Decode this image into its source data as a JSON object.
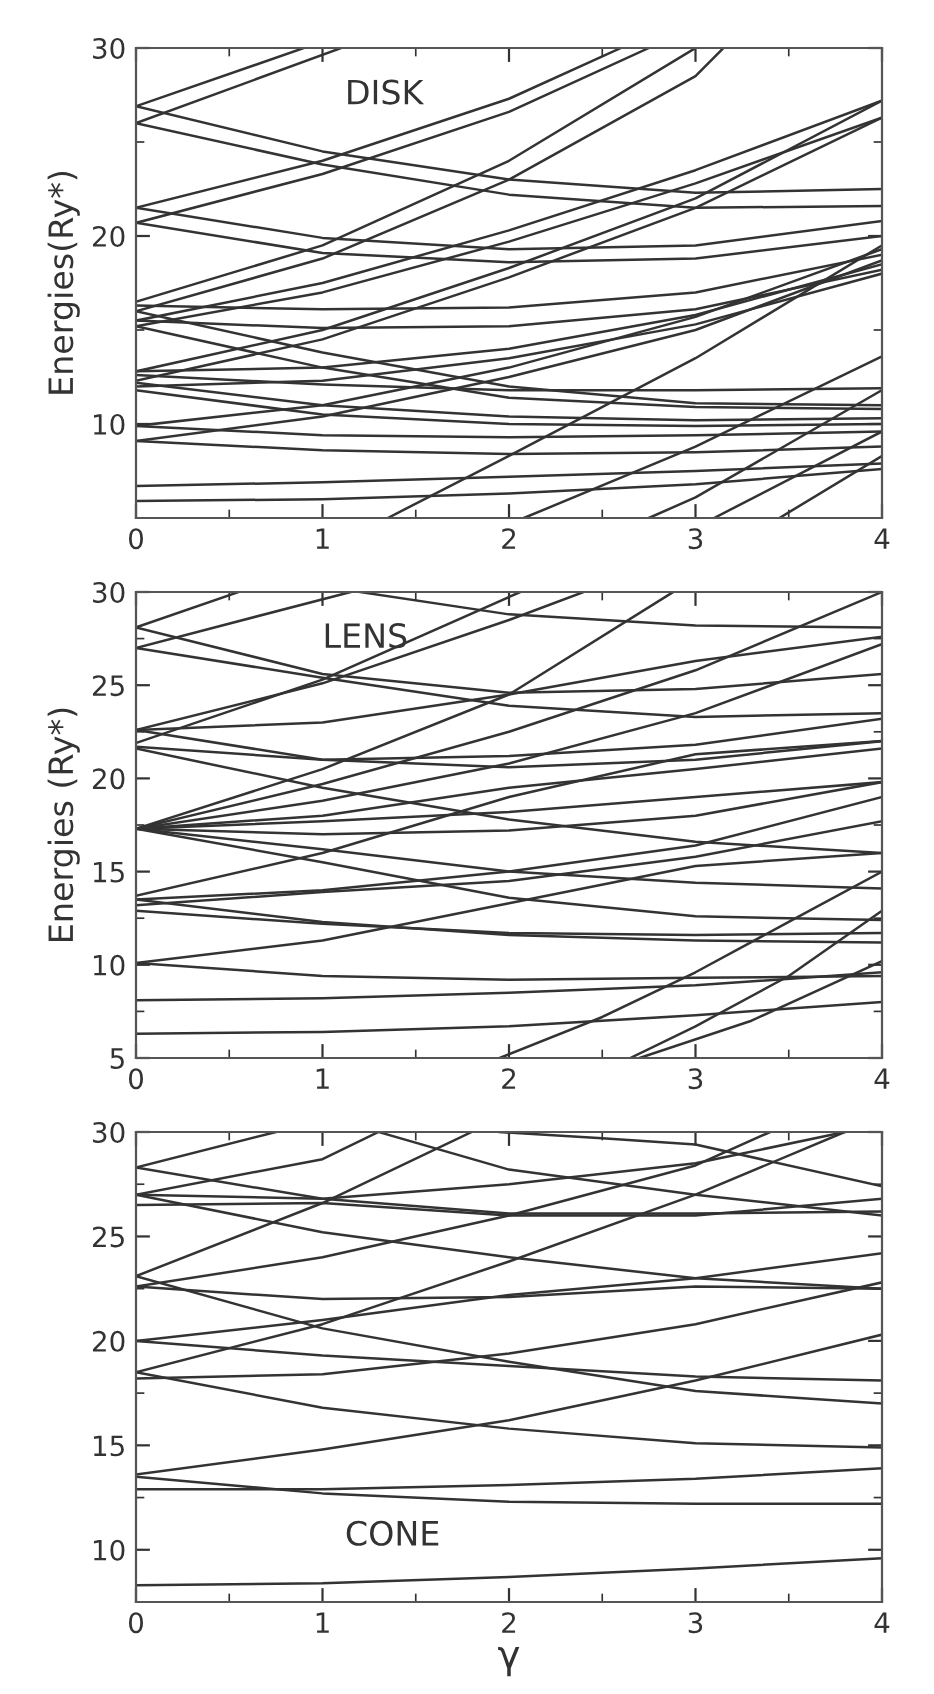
{
  "chart_data": [
    {
      "type": "line",
      "ylabel": "Energies(Ry*)",
      "annotations": [
        "DISK"
      ],
      "xlim": [
        0,
        4
      ],
      "ylim": [
        5,
        30
      ],
      "grid": false,
      "legend": false,
      "marker": "none",
      "line_style": "solid",
      "xticks": [
        0,
        {
          "value": 0.5,
          "label": null
        },
        1,
        {
          "value": 1.5,
          "label": null
        },
        2,
        {
          "value": 2.5,
          "label": null
        },
        3,
        {
          "value": 3.5,
          "label": null
        },
        4
      ],
      "yticks": [
        10,
        {
          "value": 15,
          "label": null
        },
        20,
        {
          "value": 25,
          "label": null
        },
        30
      ],
      "series": [
        {
          "color": "#333333",
          "x": [
            0,
            0.9
          ],
          "values": [
            26.9,
            30
          ]
        },
        {
          "color": "#333333",
          "x": [
            0,
            1.1
          ],
          "values": [
            26.0,
            30
          ]
        },
        {
          "color": "#333333",
          "x": [
            0,
            1,
            2,
            3,
            4
          ],
          "values": [
            26.9,
            24.5,
            23.0,
            22.3,
            22.5
          ]
        },
        {
          "color": "#333333",
          "x": [
            0,
            1,
            2,
            3,
            4
          ],
          "values": [
            26.0,
            23.8,
            22.2,
            21.5,
            21.6
          ]
        },
        {
          "color": "#333333",
          "x": [
            0,
            1,
            2,
            2.6
          ],
          "values": [
            21.5,
            24.0,
            27.3,
            30
          ]
        },
        {
          "color": "#333333",
          "x": [
            0,
            1,
            2,
            2.75
          ],
          "values": [
            20.7,
            23.3,
            26.6,
            30
          ]
        },
        {
          "color": "#333333",
          "x": [
            0,
            1,
            2,
            3,
            4
          ],
          "values": [
            21.5,
            19.9,
            19.3,
            19.5,
            20.8
          ]
        },
        {
          "color": "#333333",
          "x": [
            0,
            1,
            2,
            3,
            4
          ],
          "values": [
            20.7,
            19.1,
            18.6,
            18.8,
            20.0
          ]
        },
        {
          "color": "#333333",
          "x": [
            0,
            1,
            2,
            3
          ],
          "values": [
            16.5,
            19.5,
            24.0,
            30
          ]
        },
        {
          "color": "#333333",
          "x": [
            0,
            1,
            2,
            3,
            3.15
          ],
          "values": [
            16.0,
            18.8,
            23.0,
            28.5,
            30
          ]
        },
        {
          "color": "#333333",
          "x": [
            0,
            1,
            2,
            3,
            4
          ],
          "values": [
            15.5,
            17.5,
            20.3,
            23.5,
            27.2
          ]
        },
        {
          "color": "#333333",
          "x": [
            0,
            1,
            2,
            3,
            4
          ],
          "values": [
            15.2,
            17.0,
            19.7,
            22.8,
            26.3
          ]
        },
        {
          "color": "#333333",
          "x": [
            0,
            1,
            2,
            3,
            4
          ],
          "values": [
            12.8,
            15.0,
            18.3,
            22.0,
            27.2
          ]
        },
        {
          "color": "#333333",
          "x": [
            0,
            1,
            2,
            3,
            4
          ],
          "values": [
            12.3,
            14.5,
            17.8,
            21.5,
            26.3
          ]
        },
        {
          "color": "#333333",
          "x": [
            0,
            1,
            2,
            3,
            4
          ],
          "values": [
            16.3,
            16.1,
            16.2,
            17.0,
            19.0
          ]
        },
        {
          "color": "#333333",
          "x": [
            0,
            1,
            2,
            3,
            4
          ],
          "values": [
            15.5,
            15.1,
            15.2,
            16.1,
            18.2
          ]
        },
        {
          "color": "#333333",
          "x": [
            0,
            1,
            2,
            3,
            4
          ],
          "values": [
            16.0,
            13.8,
            12.0,
            11.1,
            11.0
          ]
        },
        {
          "color": "#333333",
          "x": [
            0,
            1,
            2,
            3,
            4
          ],
          "values": [
            15.2,
            13.0,
            11.4,
            10.9,
            10.8
          ]
        },
        {
          "color": "#333333",
          "x": [
            0,
            1,
            2,
            3,
            4
          ],
          "values": [
            12.8,
            13.0,
            14.0,
            15.8,
            18.5
          ]
        },
        {
          "color": "#333333",
          "x": [
            0,
            1,
            2,
            3,
            4
          ],
          "values": [
            12.0,
            12.3,
            13.5,
            15.3,
            18.0
          ]
        },
        {
          "color": "#333333",
          "x": [
            0,
            1,
            2,
            3,
            4
          ],
          "values": [
            12.6,
            12.1,
            11.8,
            11.8,
            11.9
          ]
        },
        {
          "color": "#333333",
          "x": [
            0,
            1,
            2,
            3,
            4
          ],
          "values": [
            12.2,
            11.0,
            10.4,
            10.2,
            10.3
          ]
        },
        {
          "color": "#333333",
          "x": [
            0,
            1,
            2,
            3,
            4
          ],
          "values": [
            11.8,
            10.5,
            10.0,
            9.9,
            10.0
          ]
        },
        {
          "color": "#333333",
          "x": [
            0,
            1,
            2,
            3,
            4
          ],
          "values": [
            9.9,
            11.0,
            13.0,
            15.7,
            19.3
          ]
        },
        {
          "color": "#333333",
          "x": [
            0,
            1,
            2,
            3,
            4
          ],
          "values": [
            9.1,
            10.4,
            12.5,
            15.0,
            18.7
          ]
        },
        {
          "color": "#333333",
          "x": [
            0,
            1,
            2,
            3,
            4
          ],
          "values": [
            9.9,
            9.4,
            9.3,
            9.4,
            9.6
          ]
        },
        {
          "color": "#333333",
          "x": [
            0,
            1,
            2,
            3,
            4
          ],
          "values": [
            9.1,
            8.6,
            8.4,
            8.5,
            8.8
          ]
        },
        {
          "color": "#333333",
          "x": [
            0,
            1,
            2,
            3,
            4
          ],
          "values": [
            6.7,
            6.9,
            7.2,
            7.5,
            7.9
          ]
        },
        {
          "color": "#333333",
          "x": [
            0,
            1,
            2,
            3,
            4
          ],
          "values": [
            5.9,
            6.0,
            6.3,
            6.8,
            7.6
          ]
        },
        {
          "color": "#333333",
          "x": [
            1.35,
            2,
            3,
            4
          ],
          "values": [
            5,
            8.3,
            13.5,
            19.5
          ]
        },
        {
          "color": "#333333",
          "x": [
            2.08,
            3,
            4
          ],
          "values": [
            5,
            8.8,
            13.6
          ]
        },
        {
          "color": "#333333",
          "x": [
            2.75,
            3,
            4
          ],
          "values": [
            5,
            6.1,
            11.8
          ]
        },
        {
          "color": "#333333",
          "x": [
            3.1,
            4
          ],
          "values": [
            5,
            9.6
          ]
        },
        {
          "color": "#333333",
          "x": [
            3.45,
            4
          ],
          "values": [
            5,
            8.3
          ]
        }
      ]
    },
    {
      "type": "line",
      "ylabel": "Energies (Ry*)",
      "annotations": [
        "LENS"
      ],
      "xlim": [
        0,
        4
      ],
      "ylim": [
        5,
        30
      ],
      "grid": false,
      "legend": false,
      "marker": "none",
      "line_style": "solid",
      "xticks": [
        0,
        {
          "value": 0.5,
          "label": null
        },
        1,
        {
          "value": 1.5,
          "label": null
        },
        2,
        {
          "value": 2.5,
          "label": null
        },
        3,
        {
          "value": 3.5,
          "label": null
        },
        4
      ],
      "yticks": [
        5,
        {
          "value": 7.5,
          "label": null
        },
        10,
        {
          "value": 12.5,
          "label": null
        },
        15,
        {
          "value": 17.5,
          "label": null
        },
        20,
        {
          "value": 22.5,
          "label": null
        },
        25,
        {
          "value": 27.5,
          "label": null
        },
        30
      ],
      "series": [
        {
          "color": "#333333",
          "x": [
            0,
            0.55
          ],
          "values": [
            28.1,
            30
          ]
        },
        {
          "color": "#333333",
          "x": [
            0,
            1.15
          ],
          "values": [
            27.0,
            30
          ]
        },
        {
          "color": "#333333",
          "x": [
            0,
            1,
            2,
            3,
            4
          ],
          "values": [
            28.1,
            25.6,
            24.6,
            24.8,
            25.6
          ]
        },
        {
          "color": "#333333",
          "x": [
            0,
            1,
            2,
            3,
            4
          ],
          "values": [
            27.0,
            25.4,
            23.9,
            23.3,
            23.5
          ]
        },
        {
          "color": "#333333",
          "x": [
            1.2,
            2,
            3,
            4
          ],
          "values": [
            30,
            28.8,
            28.2,
            28.1
          ]
        },
        {
          "color": "#333333",
          "x": [
            0,
            1,
            2.06
          ],
          "values": [
            21.9,
            25.3,
            30
          ]
        },
        {
          "color": "#333333",
          "x": [
            0,
            1,
            2,
            2.4
          ],
          "values": [
            22.6,
            25.1,
            28.5,
            30
          ]
        },
        {
          "color": "#333333",
          "x": [
            0,
            1,
            2,
            3,
            4
          ],
          "values": [
            22.6,
            23.0,
            24.5,
            26.3,
            27.6
          ]
        },
        {
          "color": "#333333",
          "x": [
            0,
            1,
            2,
            3,
            4
          ],
          "values": [
            22.6,
            21.0,
            20.6,
            21.0,
            22.0
          ]
        },
        {
          "color": "#333333",
          "x": [
            0,
            1,
            2,
            3,
            4
          ],
          "values": [
            21.7,
            21.0,
            21.2,
            21.8,
            23.2
          ]
        },
        {
          "color": "#333333",
          "x": [
            0,
            1,
            2,
            3,
            4
          ],
          "values": [
            21.6,
            19.5,
            17.8,
            16.6,
            16.0
          ]
        },
        {
          "color": "#333333",
          "x": [
            0,
            1,
            2,
            2.88
          ],
          "values": [
            17.3,
            20.5,
            24.5,
            30
          ]
        },
        {
          "color": "#333333",
          "x": [
            0,
            1,
            2,
            3,
            4
          ],
          "values": [
            17.3,
            19.7,
            22.5,
            25.8,
            30
          ]
        },
        {
          "color": "#333333",
          "x": [
            0,
            1,
            2,
            3,
            4
          ],
          "values": [
            17.3,
            18.8,
            20.8,
            23.5,
            27.2
          ]
        },
        {
          "color": "#333333",
          "x": [
            0,
            1,
            2,
            3,
            4
          ],
          "values": [
            17.3,
            18.0,
            19.5,
            20.5,
            21.6
          ]
        },
        {
          "color": "#333333",
          "x": [
            0,
            1,
            2,
            3,
            4
          ],
          "values": [
            17.3,
            17.7,
            18.2,
            19.0,
            19.8
          ]
        },
        {
          "color": "#333333",
          "x": [
            0,
            1,
            2,
            3,
            4
          ],
          "values": [
            17.3,
            17.0,
            17.2,
            18.0,
            19.8
          ]
        },
        {
          "color": "#333333",
          "x": [
            0,
            1,
            2,
            3,
            4
          ],
          "values": [
            17.3,
            16.2,
            15.0,
            14.4,
            14.1
          ]
        },
        {
          "color": "#333333",
          "x": [
            0,
            1,
            2,
            3,
            4
          ],
          "values": [
            17.3,
            15.5,
            13.6,
            12.6,
            12.4
          ]
        },
        {
          "color": "#333333",
          "x": [
            0,
            1,
            2,
            3,
            4
          ],
          "values": [
            13.7,
            16.0,
            19.0,
            21.3,
            22.0
          ]
        },
        {
          "color": "#333333",
          "x": [
            0,
            1,
            2,
            3,
            4
          ],
          "values": [
            13.5,
            14.0,
            15.0,
            16.4,
            19.0
          ]
        },
        {
          "color": "#333333",
          "x": [
            0,
            1,
            2,
            3,
            4
          ],
          "values": [
            13.2,
            13.9,
            14.5,
            15.8,
            17.7
          ]
        },
        {
          "color": "#333333",
          "x": [
            0,
            1,
            2,
            3,
            4
          ],
          "values": [
            13.5,
            12.3,
            11.6,
            11.3,
            11.2
          ]
        },
        {
          "color": "#333333",
          "x": [
            0,
            1,
            2,
            3,
            4
          ],
          "values": [
            12.9,
            12.2,
            11.7,
            11.6,
            11.7
          ]
        },
        {
          "color": "#333333",
          "x": [
            0,
            1,
            2,
            3,
            4
          ],
          "values": [
            10.1,
            11.3,
            13.3,
            15.3,
            16.0
          ]
        },
        {
          "color": "#333333",
          "x": [
            0,
            1,
            2,
            3,
            4
          ],
          "values": [
            10.1,
            9.4,
            9.2,
            9.3,
            9.4
          ]
        },
        {
          "color": "#333333",
          "x": [
            0,
            1,
            2,
            3,
            4
          ],
          "values": [
            8.1,
            8.2,
            8.5,
            8.9,
            9.6
          ]
        },
        {
          "color": "#333333",
          "x": [
            0,
            1,
            2,
            3,
            4
          ],
          "values": [
            6.3,
            6.4,
            6.7,
            7.3,
            8.0
          ]
        },
        {
          "color": "#333333",
          "x": [
            1.95,
            2.5,
            3,
            3.5,
            4
          ],
          "values": [
            5,
            7.2,
            9.6,
            12.3,
            15.0
          ]
        },
        {
          "color": "#333333",
          "x": [
            2.65,
            3,
            3.5,
            4
          ],
          "values": [
            5,
            6.7,
            9.4,
            12.9
          ]
        },
        {
          "color": "#333333",
          "x": [
            2.7,
            3.3,
            4
          ],
          "values": [
            5,
            7.0,
            10.2
          ]
        }
      ]
    },
    {
      "type": "line",
      "xlabel": "γ",
      "annotations": [
        "CONE"
      ],
      "xlim": [
        0,
        4
      ],
      "ylim": [
        7.5,
        30
      ],
      "grid": false,
      "legend": false,
      "marker": "none",
      "line_style": "solid",
      "xticks": [
        0,
        {
          "value": 0.5,
          "label": null
        },
        1,
        {
          "value": 1.5,
          "label": null
        },
        2,
        {
          "value": 2.5,
          "label": null
        },
        3,
        {
          "value": 3.5,
          "label": null
        },
        4
      ],
      "yticks": [
        10,
        {
          "value": 12.5,
          "label": null
        },
        15,
        {
          "value": 17.5,
          "label": null
        },
        20,
        {
          "value": 22.5,
          "label": null
        },
        25,
        {
          "value": 27.5,
          "label": null
        },
        30
      ],
      "series": [
        {
          "color": "#333333",
          "x": [
            0,
            1,
            2,
            3,
            4
          ],
          "values": [
            8.3,
            8.4,
            8.7,
            9.1,
            9.6
          ]
        },
        {
          "color": "#333333",
          "x": [
            0,
            1,
            2,
            3,
            4
          ],
          "values": [
            12.9,
            12.9,
            13.1,
            13.4,
            13.9
          ]
        },
        {
          "color": "#333333",
          "x": [
            0,
            1,
            2,
            3,
            4
          ],
          "values": [
            13.5,
            12.7,
            12.3,
            12.2,
            12.2
          ]
        },
        {
          "color": "#333333",
          "x": [
            0,
            1,
            2,
            3,
            4
          ],
          "values": [
            13.6,
            14.8,
            16.2,
            18.1,
            20.3
          ]
        },
        {
          "color": "#333333",
          "x": [
            0,
            1,
            2,
            3,
            4
          ],
          "values": [
            18.5,
            16.8,
            15.8,
            15.1,
            14.9
          ]
        },
        {
          "color": "#333333",
          "x": [
            0,
            1,
            2,
            3,
            4
          ],
          "values": [
            18.2,
            18.4,
            19.4,
            20.8,
            22.8
          ]
        },
        {
          "color": "#333333",
          "x": [
            0,
            1,
            2,
            3,
            3.8
          ],
          "values": [
            18.5,
            20.8,
            23.8,
            27.0,
            30
          ]
        },
        {
          "color": "#333333",
          "x": [
            0,
            1,
            2,
            3,
            4
          ],
          "values": [
            20.0,
            19.3,
            18.8,
            18.3,
            18.1
          ]
        },
        {
          "color": "#333333",
          "x": [
            0,
            1,
            2,
            3,
            4
          ],
          "values": [
            20.0,
            21.0,
            22.2,
            23.0,
            24.2
          ]
        },
        {
          "color": "#333333",
          "x": [
            0,
            1,
            2,
            3,
            4
          ],
          "values": [
            22.6,
            22.0,
            22.1,
            22.6,
            22.5
          ]
        },
        {
          "color": "#333333",
          "x": [
            0,
            1,
            2,
            3,
            4
          ],
          "values": [
            23.1,
            20.6,
            19.0,
            17.6,
            17.0
          ]
        },
        {
          "color": "#333333",
          "x": [
            0,
            1,
            1.8
          ],
          "values": [
            23.1,
            26.6,
            30
          ]
        },
        {
          "color": "#333333",
          "x": [
            0,
            1,
            2,
            3,
            3.4
          ],
          "values": [
            22.6,
            24.0,
            26.0,
            28.4,
            30
          ]
        },
        {
          "color": "#333333",
          "x": [
            0,
            1,
            2,
            3,
            4
          ],
          "values": [
            26.5,
            26.6,
            26.0,
            26.0,
            26.8
          ]
        },
        {
          "color": "#333333",
          "x": [
            0,
            1,
            2,
            3,
            3.8
          ],
          "values": [
            27.0,
            26.8,
            27.5,
            28.5,
            30
          ]
        },
        {
          "color": "#333333",
          "x": [
            0,
            1,
            2,
            3,
            4
          ],
          "values": [
            27.0,
            25.2,
            24.0,
            23.0,
            22.5
          ]
        },
        {
          "color": "#333333",
          "x": [
            0,
            1,
            2,
            3,
            4
          ],
          "values": [
            28.3,
            26.8,
            26.1,
            26.1,
            26.2
          ]
        },
        {
          "color": "#333333",
          "x": [
            0,
            0.75
          ],
          "values": [
            28.3,
            30
          ]
        },
        {
          "color": "#333333",
          "x": [
            0,
            1,
            1.3
          ],
          "values": [
            27.0,
            28.7,
            30
          ]
        },
        {
          "color": "#333333",
          "x": [
            1.3,
            2,
            3,
            4
          ],
          "values": [
            30,
            28.2,
            27.0,
            26.0
          ]
        },
        {
          "color": "#333333",
          "x": [
            1.95,
            2.5,
            3,
            4
          ],
          "values": [
            30,
            29.7,
            29.4,
            27.4
          ]
        }
      ]
    }
  ]
}
